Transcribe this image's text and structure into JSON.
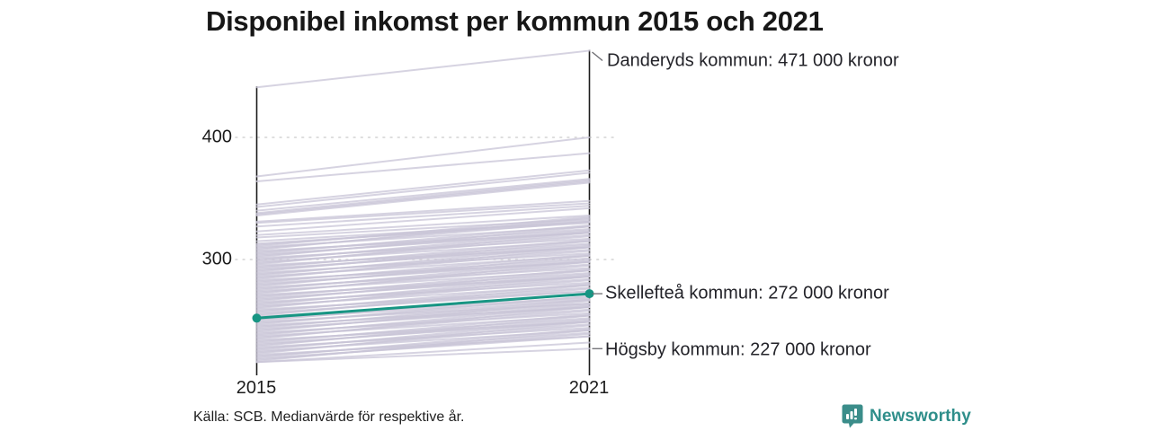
{
  "title": "Disponibel inkomst per kommun 2015 och 2021",
  "source": "Källa: SCB. Medianvärde för respektive år.",
  "logo": {
    "name": "Newsworthy",
    "brand_color": "#2e8e8a"
  },
  "chart_data": {
    "type": "line",
    "subtype": "slope-chart",
    "x": [
      2015,
      2021
    ],
    "x_labels": [
      "2015",
      "2021"
    ],
    "y_ticks": [
      400,
      300
    ],
    "y_tick_labels": [
      "400",
      "300"
    ],
    "ylim": [
      210,
      480
    ],
    "unit": "000 kronor (tusental kronor)",
    "grid": "dotted horizontal lines at y ticks",
    "legend": "none",
    "colors": {
      "highlight": "#179583",
      "background_lines": "#c9c5d7",
      "axis": "#1c1c1c"
    },
    "highlight_series": {
      "name": "Skellefteå kommun",
      "values": [
        252,
        272
      ],
      "label": "Skellefteå kommun: 272 000 kronor"
    },
    "annotations": [
      {
        "name": "Danderyds kommun",
        "label": "Danderyds kommun: 471 000 kronor",
        "value": 471
      },
      {
        "name": "Skellefteå kommun",
        "label": "Skellefteå kommun: 272 000 kronor",
        "value": 272
      },
      {
        "name": "Högsby kommun",
        "label": "Högsby kommun: 227 000 kronor",
        "value": 227
      }
    ],
    "background_lines": [
      [
        441,
        471
      ],
      [
        368,
        400
      ],
      [
        364,
        387
      ],
      [
        345,
        373
      ],
      [
        343,
        371
      ],
      [
        340,
        366
      ],
      [
        338,
        365
      ],
      [
        337,
        364
      ],
      [
        336,
        363
      ],
      [
        331,
        348
      ],
      [
        330,
        346
      ],
      [
        327,
        344
      ],
      [
        323,
        342
      ],
      [
        320,
        336
      ],
      [
        318,
        333
      ],
      [
        315,
        331
      ],
      [
        313,
        330
      ],
      [
        312,
        332
      ],
      [
        311,
        335
      ],
      [
        310,
        327
      ],
      [
        309,
        331
      ],
      [
        308,
        334
      ],
      [
        307,
        322
      ],
      [
        306,
        325
      ],
      [
        305,
        328
      ],
      [
        304,
        322
      ],
      [
        303,
        324
      ],
      [
        302,
        327
      ],
      [
        301,
        317
      ],
      [
        300,
        320
      ],
      [
        299,
        323
      ],
      [
        298,
        315
      ],
      [
        297,
        319
      ],
      [
        296,
        322
      ],
      [
        295,
        310
      ],
      [
        294,
        313
      ],
      [
        293,
        316
      ],
      [
        292,
        310
      ],
      [
        291,
        312
      ],
      [
        290,
        315
      ],
      [
        289,
        305
      ],
      [
        288,
        308
      ],
      [
        287,
        311
      ],
      [
        286,
        303
      ],
      [
        285,
        307
      ],
      [
        284,
        310
      ],
      [
        283,
        298
      ],
      [
        282,
        301
      ],
      [
        281,
        304
      ],
      [
        280,
        298
      ],
      [
        279,
        300
      ],
      [
        278,
        303
      ],
      [
        277,
        293
      ],
      [
        276,
        296
      ],
      [
        275,
        299
      ],
      [
        274,
        291
      ],
      [
        273,
        295
      ],
      [
        272,
        298
      ],
      [
        271,
        286
      ],
      [
        270,
        289
      ],
      [
        269,
        292
      ],
      [
        268,
        286
      ],
      [
        267,
        288
      ],
      [
        266,
        291
      ],
      [
        265,
        281
      ],
      [
        264,
        284
      ],
      [
        263,
        287
      ],
      [
        262,
        279
      ],
      [
        261,
        283
      ],
      [
        260,
        286
      ],
      [
        259,
        274
      ],
      [
        258,
        277
      ],
      [
        257,
        280
      ],
      [
        256,
        274
      ],
      [
        255,
        276
      ],
      [
        254,
        279
      ],
      [
        253,
        269
      ],
      [
        251,
        268
      ],
      [
        250,
        272
      ],
      [
        249,
        264
      ],
      [
        248,
        267
      ],
      [
        247,
        270
      ],
      [
        246,
        261
      ],
      [
        245,
        264
      ],
      [
        244,
        267
      ],
      [
        243,
        261
      ],
      [
        242,
        263
      ],
      [
        241,
        266
      ],
      [
        240,
        256
      ],
      [
        239,
        259
      ],
      [
        238,
        262
      ],
      [
        237,
        254
      ],
      [
        236,
        258
      ],
      [
        235,
        261
      ],
      [
        234,
        249
      ],
      [
        233,
        252
      ],
      [
        232,
        255
      ],
      [
        231,
        249
      ],
      [
        230,
        251
      ],
      [
        229,
        254
      ],
      [
        228,
        244
      ],
      [
        227,
        247
      ],
      [
        226,
        250
      ],
      [
        225,
        242
      ],
      [
        224,
        246
      ],
      [
        223,
        249
      ],
      [
        222,
        237
      ],
      [
        221,
        240
      ],
      [
        220,
        243
      ],
      [
        219,
        237
      ],
      [
        218,
        239
      ],
      [
        217,
        242
      ],
      [
        216,
        232
      ],
      [
        216,
        227
      ]
    ]
  }
}
